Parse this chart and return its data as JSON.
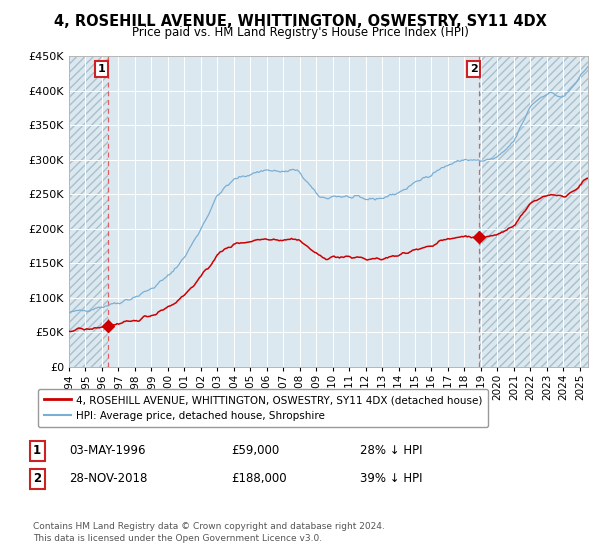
{
  "title": "4, ROSEHILL AVENUE, WHITTINGTON, OSWESTRY, SY11 4DX",
  "subtitle": "Price paid vs. HM Land Registry's House Price Index (HPI)",
  "ylim": [
    0,
    450000
  ],
  "xlim_start": 1994.0,
  "xlim_end": 2025.5,
  "sale1_date": 1996.34,
  "sale1_price": 59000,
  "sale1_label": "1",
  "sale2_date": 2018.91,
  "sale2_price": 188000,
  "sale2_label": "2",
  "red_line_color": "#cc0000",
  "blue_line_color": "#7aafd4",
  "fig_bg_color": "#ffffff",
  "plot_bg_color": "#dce8f0",
  "grid_color": "#ffffff",
  "dashed_line_color": "#e06060",
  "legend_label_red": "4, ROSEHILL AVENUE, WHITTINGTON, OSWESTRY, SY11 4DX (detached house)",
  "legend_label_blue": "HPI: Average price, detached house, Shropshire",
  "note1_num": "1",
  "note1_date": "03-MAY-1996",
  "note1_price": "£59,000",
  "note1_hpi": "28% ↓ HPI",
  "note2_num": "2",
  "note2_date": "28-NOV-2018",
  "note2_price": "£188,000",
  "note2_hpi": "39% ↓ HPI",
  "footer": "Contains HM Land Registry data © Crown copyright and database right 2024.\nThis data is licensed under the Open Government Licence v3.0.",
  "xtick_years": [
    1994,
    1995,
    1996,
    1997,
    1998,
    1999,
    2000,
    2001,
    2002,
    2003,
    2004,
    2005,
    2006,
    2007,
    2008,
    2009,
    2010,
    2011,
    2012,
    2013,
    2014,
    2015,
    2016,
    2017,
    2018,
    2019,
    2020,
    2021,
    2022,
    2023,
    2024,
    2025
  ]
}
